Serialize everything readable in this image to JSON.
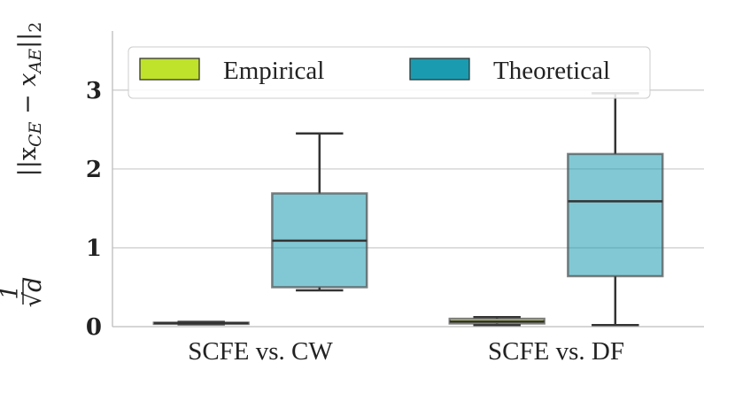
{
  "chart_data": {
    "type": "boxplot",
    "title": "",
    "xlabel": "",
    "ylabel": "1/√d ||x_CE − x_AE||₂",
    "ylabel_parts": {
      "frac_num": "1",
      "frac_den": "√d",
      "expr": "||x",
      "sub_ce": "CE",
      "minus": " − x",
      "sub_ae": "AE",
      "norm_end": "||",
      "norm_sub": "2"
    },
    "ylim": [
      0,
      3.75
    ],
    "yticks": [
      0,
      1,
      2,
      3
    ],
    "ytick_labels": [
      "0",
      "1",
      "2",
      "3"
    ],
    "grid": true,
    "legend_position": "top",
    "categories": [
      "SCFE vs. CW",
      "SCFE vs. DF"
    ],
    "series": [
      {
        "name": "Empirical",
        "color": "#bfe22a",
        "boxes": [
          {
            "whisker_low": 0.03,
            "q1": 0.035,
            "median": 0.045,
            "q3": 0.05,
            "whisker_high": 0.06
          },
          {
            "whisker_low": 0.02,
            "q1": 0.04,
            "median": 0.065,
            "q3": 0.1,
            "whisker_high": 0.12
          }
        ]
      },
      {
        "name": "Theoretical",
        "color": "#1b9bb0",
        "boxes": [
          {
            "whisker_low": 0.46,
            "q1": 0.5,
            "median": 1.09,
            "q3": 1.69,
            "whisker_high": 2.45
          },
          {
            "whisker_low": 0.02,
            "q1": 0.64,
            "median": 1.59,
            "q3": 2.19,
            "whisker_high": 2.96
          }
        ]
      }
    ]
  }
}
